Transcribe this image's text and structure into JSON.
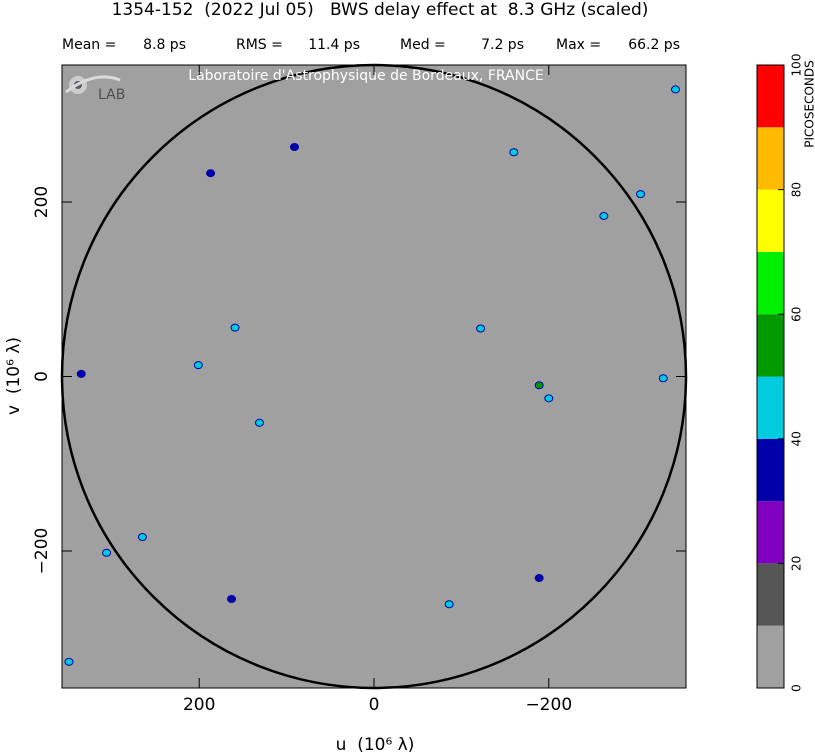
{
  "chart_data": {
    "type": "uvmap",
    "title": "1354-152  (2022 Jul 05)   BWS delay effect at  8.3 GHz (scaled)",
    "stats": [
      {
        "label": "Mean =",
        "value": "8.8 ps"
      },
      {
        "label": "RMS =",
        "value": "11.4 ps"
      },
      {
        "label": "Med =",
        "value": "7.2 ps"
      },
      {
        "label": "Max =",
        "value": "66.2 ps"
      }
    ],
    "watermark": "Laboratoire d'Astrophysique de Bordeaux, FRANCE",
    "logo_text": "LAB",
    "x_label": "u  (10⁶ λ)",
    "y_label": "v  (10⁶ λ)",
    "xlim": [
      357,
      -357
    ],
    "ylim": [
      -357,
      357
    ],
    "xticks": [
      200,
      0,
      {
        "value": -200,
        "label": "−200"
      }
    ],
    "yticks": [
      {
        "value": -200,
        "label": "−200"
      },
      0,
      200
    ],
    "circle_radius": 357,
    "colorbar": {
      "label": "PICOSECONDS",
      "levels": [
        0,
        10,
        20,
        30,
        40,
        50,
        60,
        70,
        80,
        90,
        100
      ],
      "colors": [
        "#a0a0a0",
        "#555555",
        "#7f00bf",
        "#0000aa",
        "#00ccdd",
        "#009900",
        "#00ee00",
        "#ffff00",
        "#ffbb00",
        "#ff0000"
      ],
      "ticks": [
        0,
        20,
        40,
        60,
        80,
        100
      ]
    },
    "points": {
      "u": [
        159,
        201,
        -189,
        -200,
        -263,
        -305,
        265,
        306,
        349,
        -160,
        -331,
        -122,
        131,
        163,
        187,
        -86,
        -189,
        -345,
        91,
        335
      ],
      "v": [
        56,
        13,
        -10,
        -25,
        184,
        209,
        -184,
        -202,
        -327,
        257,
        -2,
        55,
        -53,
        -255,
        233,
        -261,
        -231,
        329,
        263,
        3
      ],
      "values": [
        45,
        42,
        52,
        45,
        44,
        42,
        46,
        44,
        42,
        42,
        42,
        42,
        40,
        35,
        35,
        42,
        35,
        42,
        35,
        35
      ]
    }
  }
}
